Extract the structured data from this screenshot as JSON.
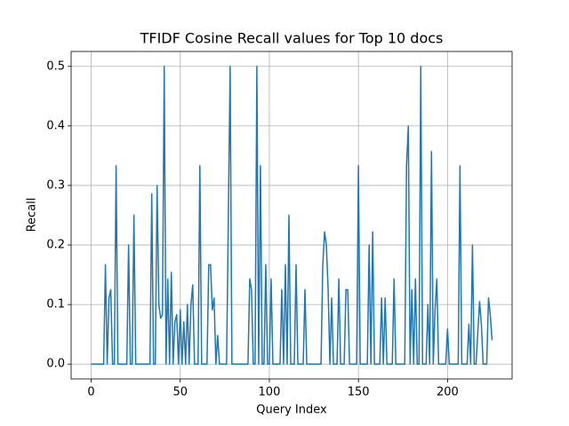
{
  "chart_data": {
    "type": "line",
    "title": "TFIDF Cosine Recall values for Top 10 docs",
    "xlabel": "Query Index",
    "ylabel": "Recall",
    "color": "#1f77b4",
    "grid": true,
    "xlim": [
      -11.25,
      236.25
    ],
    "ylim": [
      -0.025,
      0.525
    ],
    "xticks": [
      0,
      50,
      100,
      150,
      200
    ],
    "yticks": [
      {
        "value": 0,
        "label": "0.0"
      },
      0.1,
      0.2,
      0.3,
      0.4,
      0.5
    ],
    "x": [
      0,
      1,
      2,
      3,
      4,
      5,
      6,
      7,
      8,
      9,
      10,
      11,
      12,
      13,
      14,
      15,
      16,
      17,
      18,
      19,
      20,
      21,
      22,
      23,
      24,
      25,
      26,
      27,
      28,
      29,
      30,
      31,
      32,
      33,
      34,
      35,
      36,
      37,
      38,
      39,
      40,
      41,
      42,
      43,
      44,
      45,
      46,
      47,
      48,
      49,
      50,
      51,
      52,
      53,
      54,
      55,
      56,
      57,
      58,
      59,
      60,
      61,
      62,
      63,
      64,
      65,
      66,
      67,
      68,
      69,
      70,
      71,
      72,
      73,
      74,
      75,
      76,
      77,
      78,
      79,
      80,
      81,
      82,
      83,
      84,
      85,
      86,
      87,
      88,
      89,
      90,
      91,
      92,
      93,
      94,
      95,
      96,
      97,
      98,
      99,
      100,
      101,
      102,
      103,
      104,
      105,
      106,
      107,
      108,
      109,
      110,
      111,
      112,
      113,
      114,
      115,
      116,
      117,
      118,
      119,
      120,
      121,
      122,
      123,
      124,
      125,
      126,
      127,
      128,
      129,
      130,
      131,
      132,
      133,
      134,
      135,
      136,
      137,
      138,
      139,
      140,
      141,
      142,
      143,
      144,
      145,
      146,
      147,
      148,
      149,
      150,
      151,
      152,
      153,
      154,
      155,
      156,
      157,
      158,
      159,
      160,
      161,
      162,
      163,
      164,
      165,
      166,
      167,
      168,
      169,
      170,
      171,
      172,
      173,
      174,
      175,
      176,
      177,
      178,
      179,
      180,
      181,
      182,
      183,
      184,
      185,
      186,
      187,
      188,
      189,
      190,
      191,
      192,
      193,
      194,
      195,
      196,
      197,
      198,
      199,
      200,
      201,
      202,
      203,
      204,
      205,
      206,
      207,
      208,
      209,
      210,
      211,
      212,
      213,
      214,
      215,
      216,
      217,
      218,
      219,
      220,
      221,
      222,
      223,
      224,
      225
    ],
    "values": [
      0,
      0,
      0,
      0,
      0,
      0,
      0,
      0,
      0.167,
      0,
      0.111,
      0.125,
      0,
      0,
      0.333,
      0,
      0,
      0,
      0,
      0,
      0,
      0.2,
      0,
      0,
      0.25,
      0,
      0,
      0,
      0,
      0,
      0,
      0,
      0,
      0,
      0.286,
      0,
      0,
      0.3,
      0.1,
      0.077,
      0.083,
      0.5,
      0,
      0.143,
      0,
      0.154,
      0,
      0.071,
      0.083,
      0,
      0.091,
      0,
      0.071,
      0,
      0.1,
      0,
      0.1,
      0.133,
      0,
      0,
      0,
      0.333,
      0,
      0,
      0,
      0,
      0.167,
      0.167,
      0.091,
      0.111,
      0,
      0.048,
      0,
      0,
      0,
      0,
      0,
      0.25,
      0.5,
      0,
      0,
      0,
      0,
      0,
      0,
      0,
      0,
      0,
      0,
      0.143,
      0.125,
      0,
      0,
      0.5,
      0,
      0.333,
      0,
      0,
      0.167,
      0,
      0,
      0.143,
      0,
      0,
      0,
      0,
      0,
      0.125,
      0,
      0.167,
      0,
      0.25,
      0,
      0,
      0,
      0.167,
      0,
      0,
      0,
      0,
      0.125,
      0,
      0,
      0,
      0,
      0,
      0,
      0,
      0,
      0,
      0.167,
      0.222,
      0.2,
      0.125,
      0,
      0.111,
      0,
      0,
      0,
      0.143,
      0,
      0,
      0,
      0.125,
      0.125,
      0,
      0,
      0,
      0,
      0,
      0.333,
      0,
      0,
      0,
      0,
      0,
      0.2,
      0,
      0.222,
      0,
      0,
      0,
      0,
      0.111,
      0,
      0.111,
      0,
      0,
      0,
      0,
      0.143,
      0,
      0,
      0,
      0,
      0,
      0,
      0.333,
      0.4,
      0,
      0.125,
      0,
      0.143,
      0,
      0,
      0.5,
      0,
      0,
      0,
      0.1,
      0,
      0.357,
      0,
      0.091,
      0.143,
      0,
      0,
      0,
      0,
      0,
      0.059,
      0,
      0,
      0,
      0,
      0,
      0,
      0.333,
      0,
      0,
      0,
      0,
      0.067,
      0,
      0.2,
      0,
      0,
      0.053,
      0.105,
      0.067,
      0,
      0,
      0,
      0.111,
      0.083,
      0.04
    ]
  }
}
